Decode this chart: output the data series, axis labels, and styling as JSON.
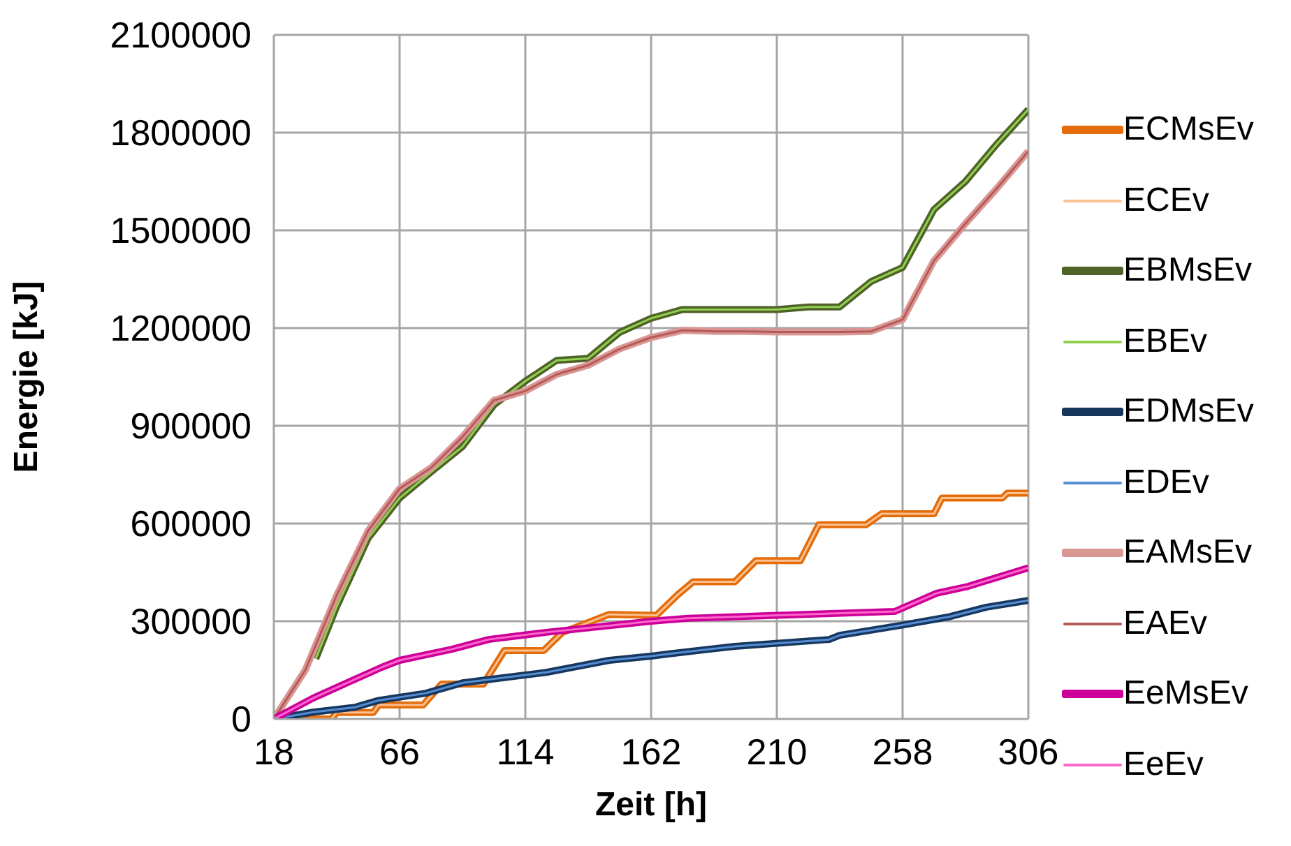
{
  "chart_data": {
    "type": "line",
    "xlabel": "Zeit [h]",
    "ylabel": "Energie [kJ]",
    "xlim": [
      18,
      306
    ],
    "xticks": [
      18,
      66,
      114,
      162,
      210,
      258,
      306
    ],
    "ylim": [
      0,
      2100000
    ],
    "yticks": [
      0,
      300000,
      600000,
      900000,
      1200000,
      1500000,
      1800000,
      2100000
    ],
    "grid": true,
    "legend": "right",
    "marker": "none",
    "series": [
      {
        "name": "ECMsEv",
        "color": "#e46c0a",
        "x": [
          18,
          40,
          42,
          56,
          58,
          75,
          82,
          98,
          106,
          121,
          128,
          146,
          164,
          172,
          178,
          194,
          202,
          219,
          226,
          244,
          250,
          270,
          273,
          296,
          298,
          306
        ],
        "values": [
          0,
          0,
          20000,
          20000,
          43000,
          43000,
          107000,
          107000,
          210000,
          210000,
          265000,
          321000,
          318000,
          380000,
          421000,
          421000,
          486000,
          486000,
          596000,
          596000,
          630000,
          630000,
          678000,
          678000,
          693000,
          693000
        ]
      },
      {
        "name": "ECEv",
        "color": "#fac090",
        "x": [
          18,
          40,
          42,
          56,
          58,
          75,
          82,
          98,
          106,
          121,
          128,
          146,
          164,
          172,
          178,
          194,
          202,
          219,
          226,
          244,
          250,
          270,
          273,
          296,
          298,
          306
        ],
        "values": [
          0,
          0,
          20000,
          20000,
          43000,
          43000,
          107000,
          107000,
          210000,
          210000,
          265000,
          321000,
          318000,
          380000,
          421000,
          421000,
          486000,
          486000,
          596000,
          596000,
          630000,
          630000,
          678000,
          678000,
          693000,
          693000
        ]
      },
      {
        "name": "EBMsEv",
        "color": "#4f6228",
        "x": [
          34,
          42,
          54,
          66,
          78,
          90,
          102,
          114,
          126,
          138,
          150,
          162,
          174,
          186,
          198,
          210,
          222,
          234,
          246,
          258,
          270,
          282,
          294,
          306
        ],
        "values": [
          185000,
          345000,
          555000,
          678000,
          758000,
          836000,
          964000,
          1037000,
          1101000,
          1107000,
          1187000,
          1230000,
          1257000,
          1257000,
          1257000,
          1257000,
          1265000,
          1265000,
          1343000,
          1386000,
          1564000,
          1650000,
          1765000,
          1871000
        ]
      },
      {
        "name": "EBEv",
        "color": "#92d050",
        "x": [
          34,
          42,
          54,
          66,
          78,
          90,
          102,
          114,
          126,
          138,
          150,
          162,
          174,
          186,
          198,
          210,
          222,
          234,
          246,
          258,
          270,
          282,
          294,
          306
        ],
        "values": [
          185000,
          345000,
          555000,
          678000,
          758000,
          836000,
          964000,
          1037000,
          1101000,
          1107000,
          1187000,
          1230000,
          1257000,
          1257000,
          1257000,
          1257000,
          1265000,
          1265000,
          1343000,
          1386000,
          1564000,
          1650000,
          1765000,
          1871000
        ]
      },
      {
        "name": "EDMsEv",
        "color": "#17375e",
        "x": [
          18,
          33,
          49,
          58,
          76,
          90,
          107,
          122,
          146,
          162,
          170,
          194,
          230,
          234,
          257,
          276,
          290,
          306
        ],
        "values": [
          0,
          21000,
          36000,
          57000,
          79000,
          111000,
          128000,
          143000,
          180000,
          193000,
          201000,
          223000,
          244000,
          257000,
          287000,
          314000,
          343000,
          364000
        ]
      },
      {
        "name": "EDEv",
        "color": "#558ed5",
        "x": [
          18,
          33,
          49,
          58,
          76,
          90,
          107,
          122,
          146,
          162,
          170,
          194,
          230,
          234,
          257,
          276,
          290,
          306
        ],
        "values": [
          0,
          21000,
          36000,
          57000,
          79000,
          111000,
          128000,
          143000,
          180000,
          193000,
          201000,
          223000,
          244000,
          257000,
          287000,
          314000,
          343000,
          364000
        ]
      },
      {
        "name": "EAMsEv",
        "color": "#d99694",
        "x": [
          18,
          30,
          42,
          54,
          66,
          78,
          90,
          102,
          114,
          126,
          138,
          150,
          162,
          174,
          186,
          198,
          210,
          222,
          234,
          246,
          258,
          270,
          282,
          294,
          306
        ],
        "values": [
          0,
          150000,
          380000,
          578000,
          707000,
          771000,
          866000,
          978000,
          1007000,
          1058000,
          1086000,
          1136000,
          1171000,
          1193000,
          1190000,
          1190000,
          1188000,
          1188000,
          1188000,
          1190000,
          1226000,
          1407000,
          1521000,
          1629000,
          1743000
        ]
      },
      {
        "name": "EAEv",
        "color": "#b65a58",
        "x": [
          18,
          30,
          42,
          54,
          66,
          78,
          90,
          102,
          114,
          126,
          138,
          150,
          162,
          174,
          186,
          198,
          210,
          222,
          234,
          246,
          258,
          270,
          282,
          294,
          306
        ],
        "values": [
          0,
          150000,
          380000,
          578000,
          707000,
          771000,
          866000,
          978000,
          1007000,
          1058000,
          1086000,
          1136000,
          1171000,
          1193000,
          1190000,
          1190000,
          1188000,
          1188000,
          1188000,
          1190000,
          1226000,
          1407000,
          1521000,
          1629000,
          1743000
        ]
      },
      {
        "name": "EeMsEv",
        "color": "#cc0099",
        "x": [
          18,
          33,
          59,
          66,
          86,
          100,
          122,
          162,
          176,
          255,
          271,
          283,
          306
        ],
        "values": [
          0,
          64000,
          158000,
          180000,
          214000,
          244000,
          266000,
          300000,
          309000,
          330000,
          386000,
          407000,
          464000
        ]
      },
      {
        "name": "EeEv",
        "color": "#ff66cc",
        "x": [
          18,
          33,
          59,
          66,
          86,
          100,
          122,
          162,
          176,
          255,
          271,
          283,
          306
        ],
        "values": [
          0,
          64000,
          158000,
          180000,
          214000,
          244000,
          266000,
          300000,
          309000,
          330000,
          386000,
          407000,
          464000
        ]
      }
    ]
  }
}
